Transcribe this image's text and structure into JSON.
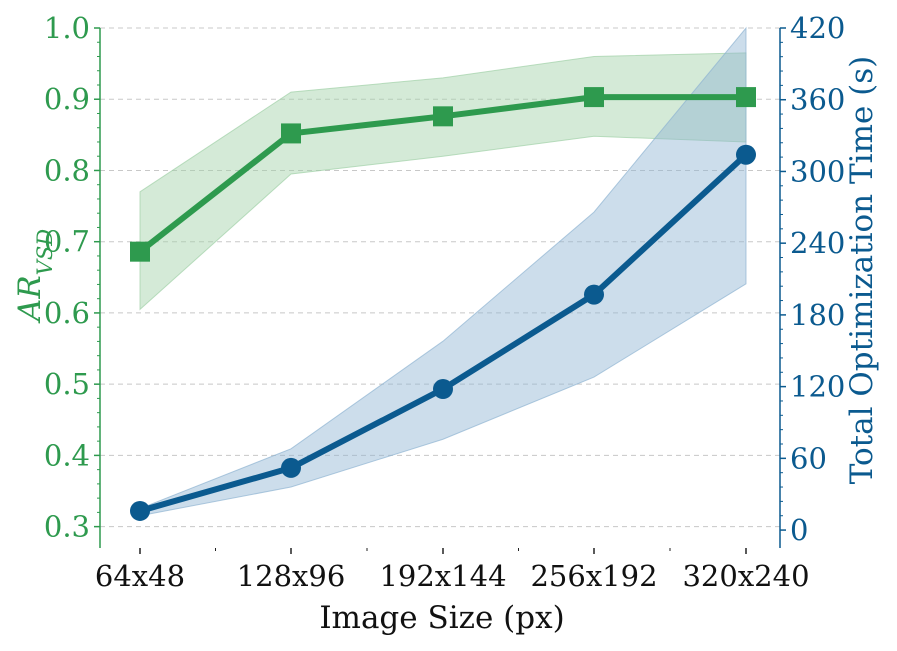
{
  "chart_data": {
    "type": "line",
    "x_label": "Image Size (px)",
    "categories": [
      "64x48",
      "128x96",
      "192x144",
      "256x192",
      "320x240"
    ],
    "y_left": {
      "label_main": "AR",
      "label_sub": "VSD",
      "range": [
        0.27,
        1.0
      ],
      "ticks": [
        "0.3",
        "0.4",
        "0.5",
        "0.6",
        "0.7",
        "0.8",
        "0.9",
        "1.0"
      ],
      "tick_values": [
        0.3,
        0.4,
        0.5,
        0.6,
        0.7,
        0.8,
        0.9,
        1.0
      ],
      "color": "#2e9a4e"
    },
    "y_right": {
      "label": "Total Optimization Time (s)",
      "range": [
        -15,
        420
      ],
      "ticks": [
        "0",
        "60",
        "120",
        "180",
        "240",
        "300",
        "360",
        "420"
      ],
      "tick_values": [
        0,
        60,
        120,
        180,
        240,
        300,
        360,
        420
      ],
      "color": "#0b5a8f"
    },
    "grid": "horizontal-dashed",
    "series": [
      {
        "axis": "left",
        "marker": "square",
        "color": "#2e9a4e",
        "band_color": "#9fd0a6",
        "values": [
          0.686,
          0.852,
          0.876,
          0.903,
          0.903
        ],
        "band_upper": [
          0.77,
          0.91,
          0.93,
          0.96,
          0.965
        ],
        "band_lower": [
          0.605,
          0.795,
          0.82,
          0.848,
          0.84
        ]
      },
      {
        "axis": "right",
        "marker": "circle",
        "color": "#0b5a8f",
        "band_color": "#8fb4d2",
        "values": [
          16,
          52,
          118,
          197,
          314
        ],
        "band_upper": [
          18,
          68,
          158,
          266,
          420
        ],
        "band_lower": [
          12,
          36,
          76,
          128,
          206
        ]
      }
    ]
  }
}
